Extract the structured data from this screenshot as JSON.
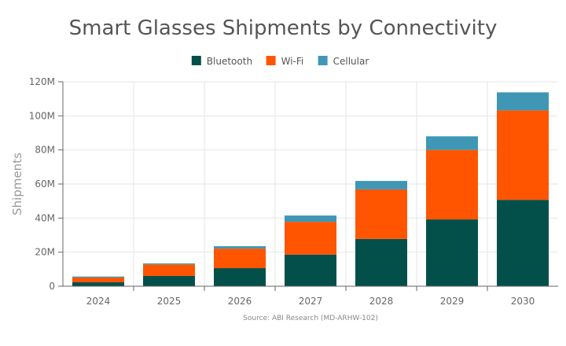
{
  "chart_data": {
    "type": "bar",
    "stacked": true,
    "title": "Smart Glasses Shipments by Connectivity",
    "ylabel": "Shipments",
    "xlabel": "",
    "source": "Source: ABI Research (MD-ARHW-102)",
    "categories": [
      "2024",
      "2025",
      "2026",
      "2027",
      "2028",
      "2029",
      "2030"
    ],
    "ylim": [
      0,
      120000000
    ],
    "yticks": [
      0,
      20000000,
      40000000,
      60000000,
      80000000,
      100000000,
      120000000
    ],
    "ytick_labels": [
      "0",
      "20M",
      "40M",
      "60M",
      "80M",
      "100M",
      "120M"
    ],
    "grid": true,
    "legend_position": "top-center",
    "series": [
      {
        "name": "Bluetooth",
        "color": "#03504B",
        "values": [
          2300000,
          6000000,
          10600000,
          18600000,
          27800000,
          39200000,
          50700000
        ]
      },
      {
        "name": "Wi-Fi",
        "color": "#FF5500",
        "values": [
          2800000,
          6800000,
          11500000,
          19200000,
          29000000,
          40800000,
          52500000
        ]
      },
      {
        "name": "Cellular",
        "color": "#3F97B5",
        "values": [
          600000,
          600000,
          1400000,
          3700000,
          5000000,
          8000000,
          10600000
        ]
      }
    ]
  }
}
